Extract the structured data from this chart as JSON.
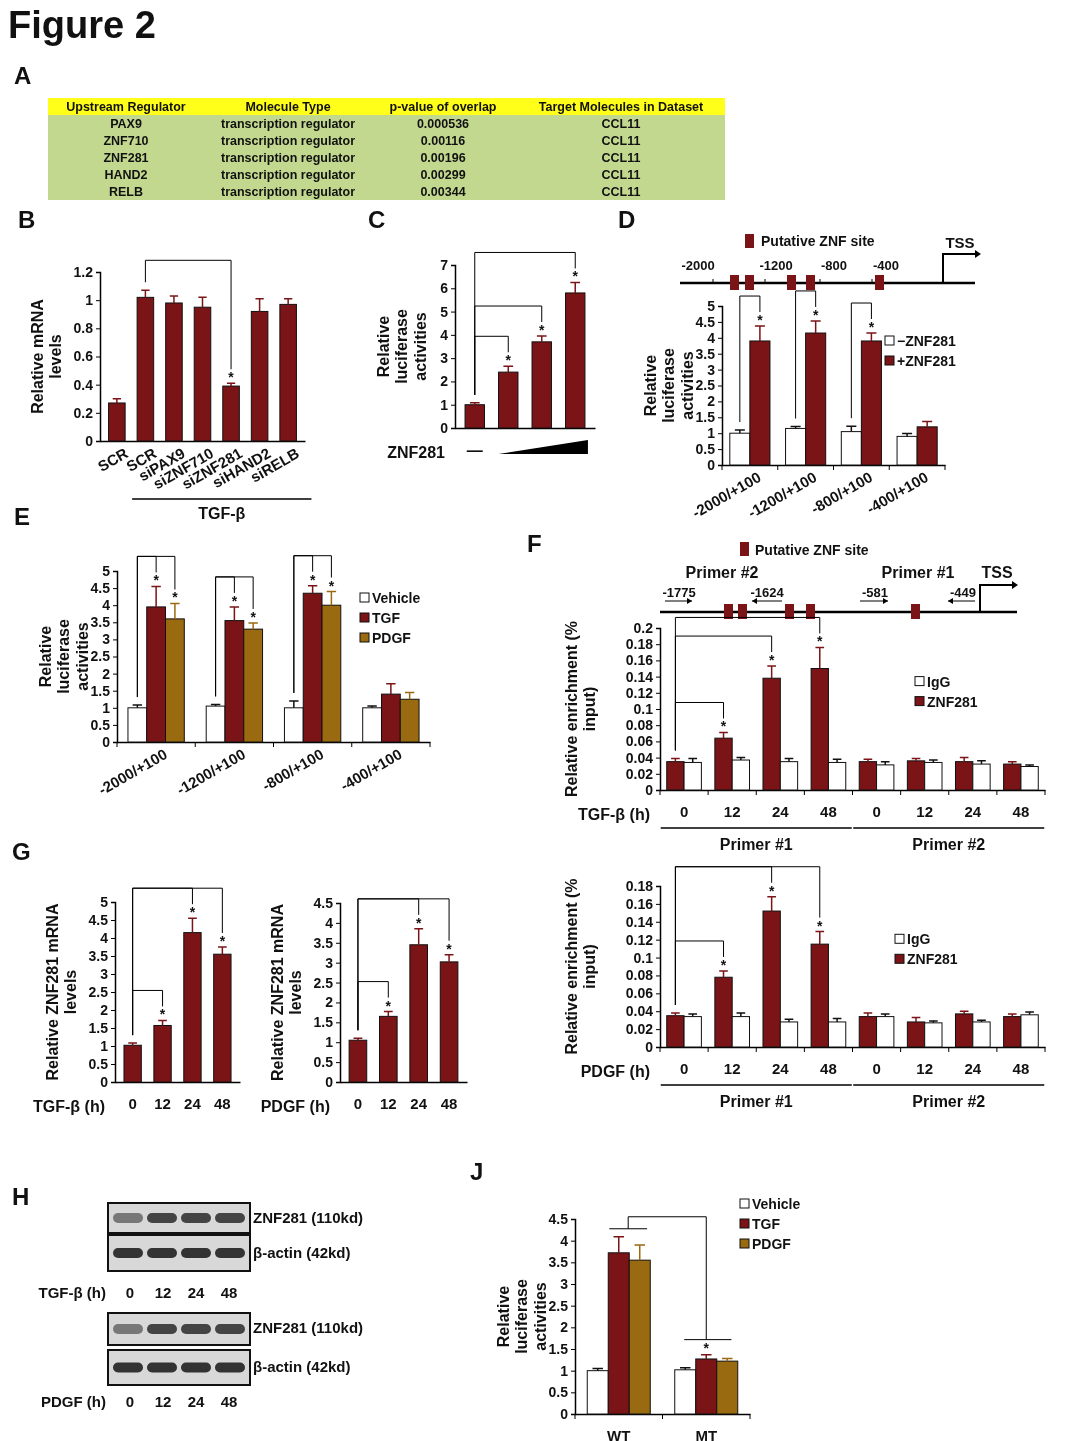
{
  "chart_data": [
    {
      "type": "other",
      "title": "Figure 2",
      "subtitle": "A",
      "annotations": [
        "Upstream Regulator",
        "Molecule Type",
        "p-value of overlap",
        "Target Molecules in Dataset",
        "PAX9",
        "transcription regulator",
        "0.000536",
        "CCL11",
        "ZNF710",
        "transcription regulator",
        "0.00116",
        "CCL11",
        "ZNF281",
        "transcription regulator",
        "0.00196",
        "CCL11",
        "HAND2",
        "transcription regulator",
        "0.00299",
        "CCL11",
        "RELB",
        "transcription regulator",
        "0.00344",
        "CCL11"
      ]
    },
    {
      "type": "bar",
      "title": "B",
      "ylabel": "Relative mRNA levels",
      "xlabel": "TGF-β",
      "categories": [
        "SCR",
        "SCR",
        "siPAX9",
        "siZNF710",
        "siZNF281",
        "siHAND2",
        "siRELB"
      ],
      "values": [
        0.27,
        1.02,
        0.98,
        0.95,
        0.39,
        0.92,
        0.97
      ],
      "errors": [
        0.03,
        0.05,
        0.05,
        0.07,
        0.02,
        0.09,
        0.04
      ],
      "color": "#7b1416",
      "ylim": [
        0,
        1.2
      ],
      "yticks": [
        0,
        0.2,
        0.4,
        0.6,
        0.8,
        1,
        1.2
      ],
      "annotations": [
        "*"
      ]
    },
    {
      "type": "bar",
      "title": "C",
      "ylabel": "Relative luciferase activities",
      "xlabel": "ZNF281",
      "categories": [
        null,
        null,
        null,
        null
      ],
      "values": [
        1,
        2.4,
        3.7,
        5.8
      ],
      "errors": [
        0.08,
        0.25,
        0.25,
        0.45
      ],
      "color": "#7b1416",
      "ylim": [
        0,
        7
      ],
      "yticks": [
        0,
        1,
        2,
        3,
        4,
        5,
        6,
        7
      ],
      "annotations": [
        "—",
        "*",
        "*",
        "*"
      ]
    },
    {
      "type": "bar",
      "title": "D",
      "ylabel": "Relative luciferase activities",
      "categories": [
        "-2000/+100",
        "-1200/+100",
        "-800/+100",
        "-400/+100"
      ],
      "ylim": [
        0,
        5
      ],
      "yticks": [
        0,
        0.5,
        1,
        1.5,
        2,
        2.5,
        3,
        3.5,
        4,
        4.5,
        5
      ],
      "legend": "top right",
      "series": [
        {
          "name": "−ZNF281",
          "color": "#ffffff",
          "values": [
            1,
            1.15,
            1.05,
            0.9
          ],
          "errors": [
            0.1,
            0.06,
            0.17,
            0.09
          ]
        },
        {
          "name": "+ZNF281",
          "color": "#7b1416",
          "values": [
            3.9,
            4.15,
            3.9,
            1.2
          ],
          "errors": [
            0.47,
            0.38,
            0.25,
            0.17
          ]
        }
      ],
      "annotations": [
        "Putative ZNF site",
        "TSS",
        "-2000",
        "-1200",
        "-800",
        "-400",
        "*",
        "*",
        "*"
      ]
    },
    {
      "type": "bar",
      "title": "E",
      "ylabel": "Relative luciferase activities",
      "categories": [
        "-2000/+100",
        "-1200/+100",
        "-800/+100",
        "-400/+100"
      ],
      "ylim": [
        0,
        5
      ],
      "yticks": [
        0,
        0.5,
        1,
        1.5,
        2,
        2.5,
        3,
        3.5,
        4,
        4.5,
        5
      ],
      "legend": "top right",
      "series": [
        {
          "name": "Vehicle",
          "color": "#ffffff",
          "values": [
            1,
            1.05,
            1,
            1
          ],
          "errors": [
            0.08,
            0.05,
            0.2,
            0.05
          ]
        },
        {
          "name": "TGF",
          "color": "#7b1416",
          "values": [
            3.95,
            3.55,
            4.35,
            1.4
          ],
          "errors": [
            0.6,
            0.4,
            0.22,
            0.3
          ]
        },
        {
          "name": "PDGF",
          "color": "#9a6a10",
          "values": [
            3.6,
            3.3,
            4.0,
            1.25
          ],
          "errors": [
            0.45,
            0.18,
            0.4,
            0.2
          ]
        }
      ],
      "annotations": [
        "*",
        "*",
        "*",
        "*",
        "*",
        "*"
      ]
    },
    {
      "type": "bar",
      "title": "F",
      "ylabel": "Relative enrichment (% input)",
      "xlabel": "TGF-β (h)",
      "categories": [
        "0",
        "12",
        "24",
        "48",
        "0",
        "12",
        "24",
        "48"
      ],
      "ylim": [
        0,
        0.2
      ],
      "yticks": [
        0,
        0.02,
        0.04,
        0.06,
        0.08,
        0.1,
        0.12,
        0.14,
        0.16,
        0.18,
        0.2
      ],
      "legend": "right",
      "series": [
        {
          "name": "ZNF281",
          "color": "#7b1416",
          "values": [
            0.035,
            0.064,
            0.138,
            0.15,
            0.035,
            0.036,
            0.035,
            0.032
          ],
          "errors": [
            0.004,
            0.007,
            0.015,
            0.026,
            0.003,
            0.003,
            0.005,
            0.003
          ]
        },
        {
          "name": "IgG",
          "color": "#ffffff",
          "values": [
            0.034,
            0.037,
            0.035,
            0.034,
            0.031,
            0.034,
            0.032,
            0.029
          ],
          "errors": [
            0.005,
            0.003,
            0.004,
            0.004,
            0.004,
            0.003,
            0.004,
            0.002
          ]
        }
      ],
      "annotations": [
        "Primer #1",
        "Primer #2",
        "Putative ZNF site",
        "Primer #2",
        "Primer #1",
        "TSS",
        "-1775",
        "-1624",
        "-581",
        "-449",
        "*",
        "*",
        "*"
      ]
    },
    {
      "type": "bar",
      "title": "G",
      "ylabel": "Relative ZNF281 mRNA levels",
      "xlabel": "TGF-β (h)",
      "categories": [
        "0",
        "12",
        "24",
        "48"
      ],
      "values": [
        1.02,
        1.57,
        4.15,
        3.55
      ],
      "errors": [
        0.06,
        0.14,
        0.4,
        0.2
      ],
      "color": "#7b1416",
      "ylim": [
        0,
        5
      ],
      "yticks": [
        0,
        0.5,
        1,
        1.5,
        2,
        2.5,
        3,
        3.5,
        4,
        4.5,
        5
      ],
      "annotations": [
        "*",
        "*",
        "*"
      ]
    },
    {
      "type": "bar",
      "ylabel": "Relative ZNF281 mRNA levels",
      "xlabel": "PDGF (h)",
      "categories": [
        "0",
        "12",
        "24",
        "48"
      ],
      "values": [
        1.05,
        1.65,
        3.45,
        3.02
      ],
      "errors": [
        0.05,
        0.12,
        0.4,
        0.18
      ],
      "color": "#7b1416",
      "ylim": [
        0,
        4.5
      ],
      "yticks": [
        0,
        0.5,
        1,
        1.5,
        2,
        2.5,
        3,
        3.5,
        4,
        4.5
      ],
      "annotations": [
        "*",
        "*",
        "*"
      ]
    },
    {
      "type": "bar",
      "ylabel": "Relative enrichment (% input)",
      "xlabel": "PDGF (h)",
      "categories": [
        "0",
        "12",
        "24",
        "48",
        "0",
        "12",
        "24",
        "48"
      ],
      "ylim": [
        0,
        0.18
      ],
      "yticks": [
        0,
        0.02,
        0.04,
        0.06,
        0.08,
        0.1,
        0.12,
        0.14,
        0.16,
        0.18
      ],
      "legend": "right",
      "series": [
        {
          "name": "ZNF281",
          "color": "#7b1416",
          "values": [
            0.035,
            0.078,
            0.152,
            0.115,
            0.034,
            0.028,
            0.037,
            0.034
          ],
          "errors": [
            0.003,
            0.007,
            0.016,
            0.014,
            0.004,
            0.005,
            0.003,
            0.003
          ]
        },
        {
          "name": "IgG",
          "color": "#ffffff",
          "values": [
            0.034,
            0.034,
            0.028,
            0.028,
            0.034,
            0.027,
            0.028,
            0.036
          ],
          "errors": [
            0.003,
            0.004,
            0.003,
            0.004,
            0.003,
            0.002,
            0.002,
            0.003
          ]
        }
      ],
      "annotations": [
        "Primer #1",
        "Primer #2",
        "*",
        "*",
        "*"
      ]
    },
    {
      "type": "other",
      "title": "H",
      "annotations": [
        "ZNF281 (110kd)",
        "β-actin (42kd)",
        "TGF-β (h)",
        "0",
        "12",
        "24",
        "48",
        "ZNF281 (110kd)",
        "β-actin (42kd)",
        "PDGF (h)",
        "0",
        "12",
        "24",
        "48"
      ]
    },
    {
      "type": "bar",
      "title": "J",
      "ylabel": "Relative luciferase activities",
      "categories": [
        "WT",
        "MT"
      ],
      "ylim": [
        0,
        4.5
      ],
      "yticks": [
        0,
        0.5,
        1,
        1.5,
        2,
        2.5,
        3,
        3.5,
        4,
        4.5
      ],
      "legend": "top right",
      "series": [
        {
          "name": "Vehicle",
          "color": "#ffffff",
          "values": [
            1,
            1.02
          ],
          "errors": [
            0.05,
            0.05
          ]
        },
        {
          "name": "TGF",
          "color": "#7b1416",
          "values": [
            3.72,
            1.27
          ],
          "errors": [
            0.37,
            0.1
          ]
        },
        {
          "name": "PDGF",
          "color": "#9a6a10",
          "values": [
            3.55,
            1.22
          ],
          "errors": [
            0.35,
            0.06
          ]
        }
      ],
      "annotations": [
        "*"
      ]
    }
  ]
}
